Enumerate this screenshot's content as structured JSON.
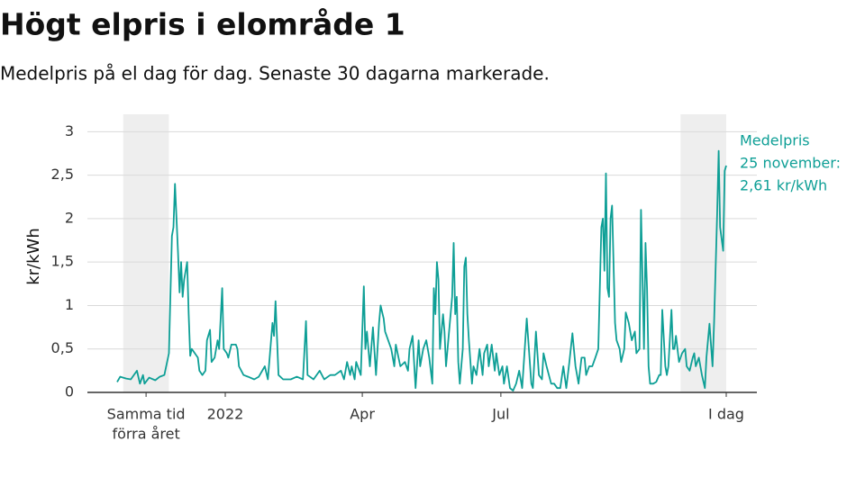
{
  "chart_data": {
    "type": "line",
    "title": "Högt elpris i elområde 1",
    "subtitle": "Medelpris på el dag för dag.  Senaste 30 dagarna markerade.",
    "y_label": "kr/kWh",
    "annotation": [
      "Medelpris",
      "25 november:",
      "2,61 kr/kWh"
    ],
    "color": "#0e9f96",
    "highlight_color": "#eeeeee",
    "highlight_ranges": [
      [
        4,
        34
      ],
      [
        370,
        400
      ]
    ],
    "grid": true,
    "xlim": [
      0,
      400
    ],
    "ylim": [
      0,
      3.2
    ],
    "yticks": [
      0,
      {
        "value": 0.5,
        "label": "0,5"
      },
      1,
      {
        "value": 1.5,
        "label": "1,5"
      },
      2,
      {
        "value": 2.5,
        "label": "2,5"
      },
      3
    ],
    "xticks": [
      {
        "value": 19,
        "label": [
          "Samma tid",
          "förra året"
        ]
      },
      {
        "value": 71,
        "label": [
          "2022"
        ]
      },
      {
        "value": 161,
        "label": [
          "Apr"
        ]
      },
      {
        "value": 252,
        "label": [
          "Jul"
        ]
      },
      {
        "value": 400,
        "label": [
          "I dag"
        ]
      }
    ],
    "x": [
      0,
      2,
      6,
      9,
      13,
      15,
      17,
      18,
      21,
      25,
      28,
      31,
      34,
      36,
      37,
      38,
      40,
      41,
      42,
      43,
      44,
      46,
      47,
      48,
      49,
      51,
      53,
      54,
      56,
      58,
      59,
      61,
      62,
      64,
      66,
      67,
      69,
      70,
      72,
      73,
      75,
      78,
      79,
      80,
      83,
      86,
      90,
      93,
      97,
      99,
      102,
      103,
      104,
      106,
      109,
      114,
      118,
      122,
      124,
      125,
      129,
      133,
      136,
      140,
      143,
      147,
      149,
      151,
      153,
      154,
      156,
      157,
      160,
      162,
      163,
      164,
      166,
      168,
      170,
      172,
      173,
      175,
      176,
      178,
      180,
      182,
      183,
      186,
      189,
      191,
      192,
      194,
      196,
      198,
      199,
      201,
      203,
      205,
      207,
      208,
      209,
      210,
      211,
      212,
      214,
      215,
      216,
      217,
      220,
      221,
      222,
      223,
      224,
      225,
      227,
      228,
      229,
      230,
      231,
      233,
      234,
      236,
      238,
      240,
      241,
      243,
      244,
      246,
      248,
      249,
      251,
      253,
      254,
      256,
      258,
      260,
      262,
      264,
      266,
      269,
      270,
      272,
      273,
      275,
      277,
      279,
      280,
      282,
      285,
      287,
      289,
      291,
      293,
      295,
      297,
      299,
      301,
      303,
      305,
      307,
      308,
      310,
      312,
      314,
      316,
      318,
      319,
      320,
      321,
      322,
      323,
      324,
      325,
      327,
      328,
      330,
      331,
      333,
      334,
      336,
      338,
      340,
      341,
      343,
      344,
      345,
      346,
      347,
      348,
      349,
      350,
      352,
      354,
      356,
      357,
      358,
      360,
      361,
      362,
      364,
      365,
      366,
      367,
      369,
      371,
      373,
      374,
      376,
      378,
      379,
      380,
      382,
      384,
      386,
      387,
      389,
      391,
      392,
      394,
      395,
      396,
      398,
      399,
      400
    ],
    "values": [
      0.12,
      0.18,
      0.16,
      0.15,
      0.25,
      0.1,
      0.2,
      0.1,
      0.17,
      0.14,
      0.18,
      0.2,
      0.45,
      1.8,
      1.9,
      2.4,
      1.6,
      1.15,
      1.5,
      1.1,
      1.3,
      1.5,
      0.9,
      0.42,
      0.5,
      0.45,
      0.4,
      0.25,
      0.2,
      0.25,
      0.6,
      0.72,
      0.35,
      0.4,
      0.6,
      0.5,
      1.2,
      0.5,
      0.45,
      0.4,
      0.55,
      0.55,
      0.5,
      0.3,
      0.2,
      0.18,
      0.15,
      0.18,
      0.3,
      0.15,
      0.8,
      0.65,
      1.05,
      0.2,
      0.15,
      0.15,
      0.18,
      0.15,
      0.82,
      0.2,
      0.15,
      0.25,
      0.15,
      0.2,
      0.2,
      0.25,
      0.15,
      0.35,
      0.2,
      0.3,
      0.15,
      0.35,
      0.2,
      1.22,
      0.5,
      0.7,
      0.3,
      0.75,
      0.2,
      0.8,
      1.0,
      0.85,
      0.7,
      0.6,
      0.5,
      0.3,
      0.55,
      0.3,
      0.35,
      0.25,
      0.5,
      0.65,
      0.05,
      0.6,
      0.3,
      0.5,
      0.6,
      0.4,
      0.1,
      1.2,
      0.9,
      1.5,
      1.3,
      0.5,
      0.9,
      0.7,
      0.3,
      0.5,
      1.1,
      1.72,
      0.9,
      1.1,
      0.35,
      0.1,
      0.5,
      1.45,
      1.55,
      0.9,
      0.6,
      0.1,
      0.3,
      0.2,
      0.5,
      0.2,
      0.45,
      0.55,
      0.3,
      0.55,
      0.25,
      0.45,
      0.2,
      0.3,
      0.1,
      0.3,
      0.05,
      0.02,
      0.1,
      0.25,
      0.05,
      0.85,
      0.6,
      0.1,
      0.05,
      0.7,
      0.2,
      0.15,
      0.45,
      0.3,
      0.1,
      0.1,
      0.05,
      0.05,
      0.3,
      0.05,
      0.35,
      0.68,
      0.3,
      0.1,
      0.4,
      0.4,
      0.2,
      0.3,
      0.3,
      0.4,
      0.5,
      1.9,
      2.0,
      1.4,
      2.52,
      1.2,
      1.1,
      2.0,
      2.15,
      0.8,
      0.6,
      0.5,
      0.35,
      0.5,
      0.92,
      0.8,
      0.6,
      0.7,
      0.45,
      0.5,
      2.1,
      1.3,
      0.5,
      1.72,
      1.2,
      0.3,
      0.1,
      0.1,
      0.12,
      0.2,
      0.2,
      0.95,
      0.3,
      0.2,
      0.3,
      0.95,
      0.5,
      0.5,
      0.65,
      0.35,
      0.45,
      0.5,
      0.3,
      0.25,
      0.4,
      0.45,
      0.3,
      0.4,
      0.2,
      0.05,
      0.4,
      0.79,
      0.3,
      0.8,
      2.05,
      2.78,
      1.9,
      1.63,
      2.55,
      2.61
    ]
  }
}
